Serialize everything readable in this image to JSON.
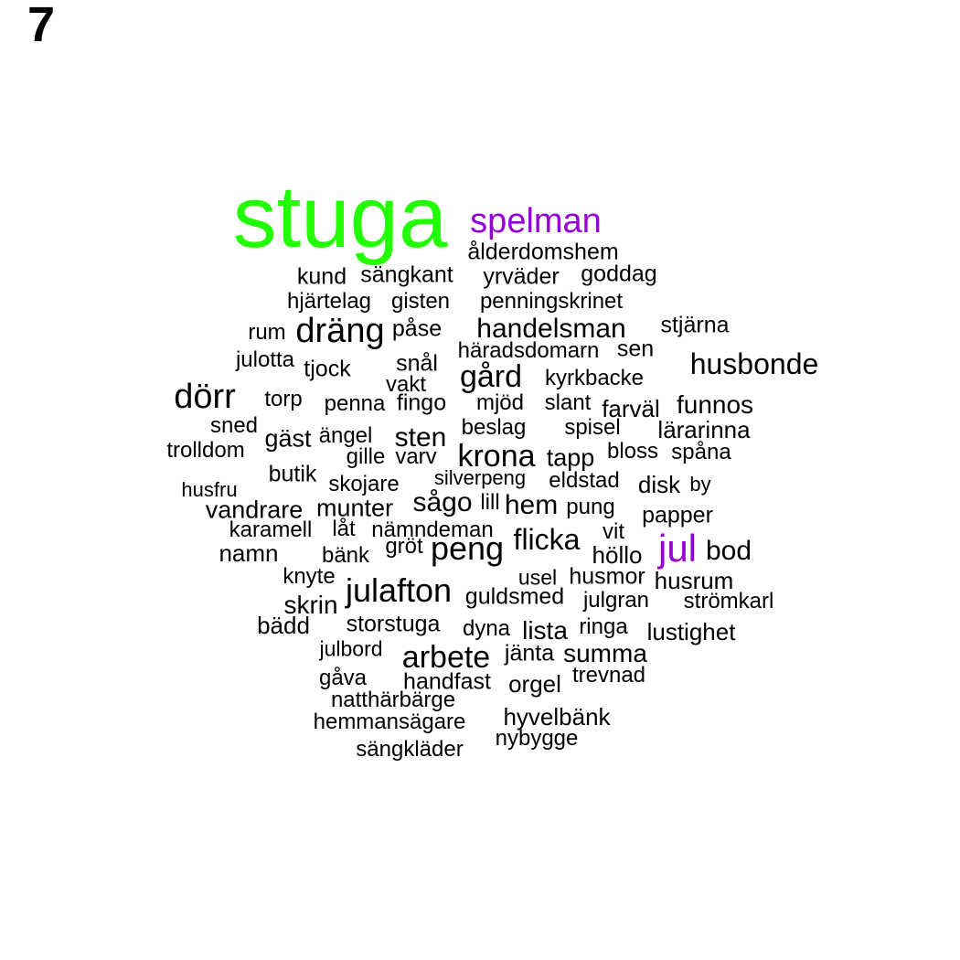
{
  "panel_label": "7",
  "colors": {
    "default": "#000000",
    "top": "#22ff00",
    "accent": "#9400d3"
  },
  "words": [
    "stuga",
    "spelman",
    "ålderdomshem",
    "kund",
    "sängkant",
    "yrväder",
    "goddag",
    "hjärtelag",
    "gisten",
    "penningskrinet",
    "rum",
    "dräng",
    "påse",
    "handelsman",
    "stjärna",
    "julotta",
    "häradsdomarn",
    "sen",
    "tjock",
    "snål",
    "husbonde",
    "vakt",
    "gård",
    "kyrkbacke",
    "dörr",
    "torp",
    "penna",
    "fingo",
    "mjöd",
    "slant",
    "farväl",
    "funnos",
    "sned",
    "gäst",
    "ängel",
    "beslag",
    "spisel",
    "lärarinna",
    "sten",
    "trolldom",
    "gille",
    "varv",
    "krona",
    "tapp",
    "bloss",
    "spåna",
    "butik",
    "silverpeng",
    "eldstad",
    "disk",
    "by",
    "husfru",
    "skojare",
    "vandrare",
    "munter",
    "sågo",
    "lill",
    "hem",
    "pung",
    "papper",
    "karamell",
    "låt",
    "nämndeman",
    "vit",
    "namn",
    "gröt",
    "peng",
    "flicka",
    "jul",
    "bod",
    "bänk",
    "höllo",
    "knyte",
    "usel",
    "husmor",
    "husrum",
    "julafton",
    "guldsmed",
    "julgran",
    "skrin",
    "strömkarl",
    "bädd",
    "storstuga",
    "dyna",
    "lista",
    "ringa",
    "lustighet",
    "julbord",
    "arbete",
    "jänta",
    "summa",
    "gåva",
    "handfast",
    "orgel",
    "trevnad",
    "natthärbärge",
    "hyvelbänk",
    "hemmansägare",
    "nybygge",
    "sängkläder"
  ]
}
